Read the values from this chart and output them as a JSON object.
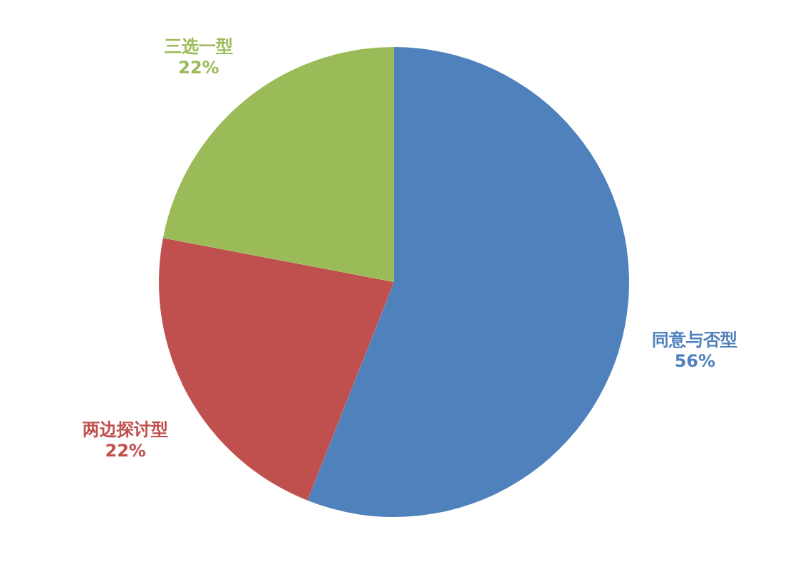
{
  "chart_data": {
    "type": "pie",
    "categories": [
      "同意与否型",
      "两边探讨型",
      "三选一型"
    ],
    "values": [
      56,
      22,
      22
    ],
    "colors": [
      "#4f81bd",
      "#c0504d",
      "#9bbb59"
    ],
    "value_labels": [
      "56%",
      "22%",
      "22%"
    ]
  }
}
